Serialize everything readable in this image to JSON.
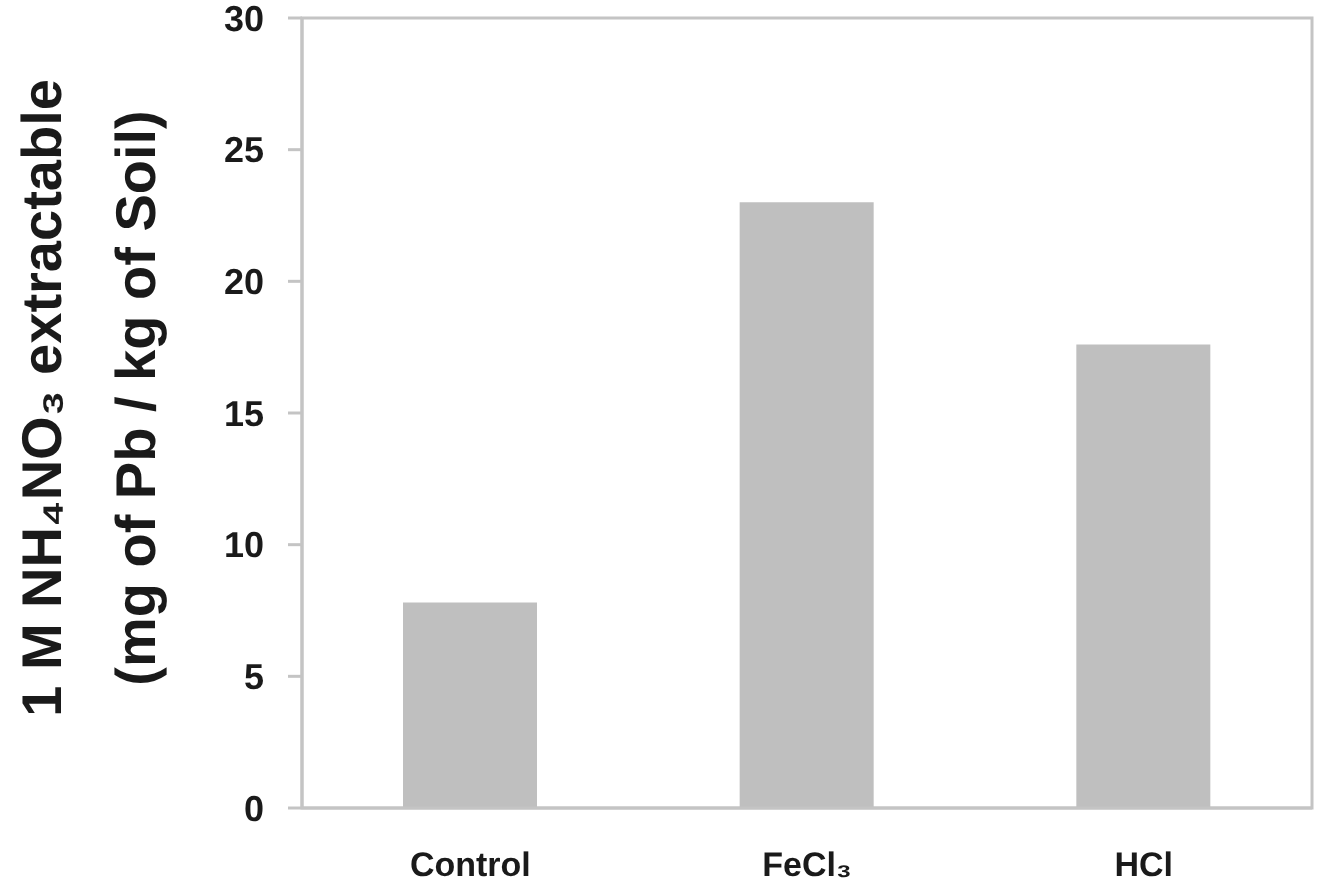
{
  "chart_data": {
    "type": "bar",
    "ylabel": "1 M NH₄NO₃ extractable\n(mg of Pb / kg of Soil)",
    "categories": [
      "Control",
      "FeCl₃",
      "HCl"
    ],
    "values": [
      7.8,
      23.0,
      17.6
    ],
    "color": "#bfbfbf",
    "ylim": [
      0,
      30
    ],
    "yticks": [
      0,
      5,
      10,
      15,
      20,
      25,
      30
    ]
  }
}
